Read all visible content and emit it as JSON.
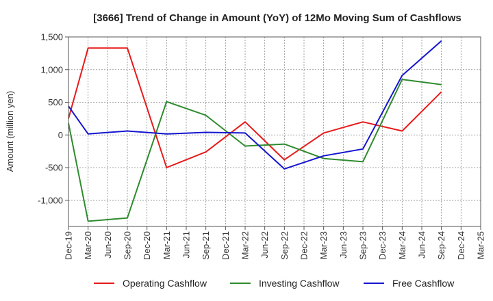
{
  "chart_data": {
    "type": "line",
    "title": "[3666]  Trend of Change in Amount (YoY) of 12Mo Moving Sum of Cashflows",
    "xlabel": "",
    "ylabel": "Amount (million yen)",
    "ylim": [
      -1400,
      1500
    ],
    "yticks": [
      1500,
      1000,
      500,
      0,
      -500,
      -1000
    ],
    "ytick_labels": [
      "1,500",
      "1,000",
      "500",
      "0",
      "-500",
      "-1,000"
    ],
    "categories": [
      "Dec-19",
      "Mar-20",
      "Jun-20",
      "Sep-20",
      "Dec-20",
      "Mar-21",
      "Jun-21",
      "Sep-21",
      "Dec-21",
      "Mar-22",
      "Jun-22",
      "Sep-22",
      "Dec-22",
      "Mar-23",
      "Jun-23",
      "Sep-23",
      "Dec-23",
      "Mar-24",
      "Jun-24",
      "Sep-24",
      "Dec-24",
      "Mar-25"
    ],
    "grid": true,
    "legend_position": "bottom",
    "series": [
      {
        "name": "Operating Cashflow",
        "color": "#e8191a",
        "points": [
          {
            "x": "Dec-19",
            "y": 250
          },
          {
            "x": "Mar-20",
            "y": 1330
          },
          {
            "x": "Sep-20",
            "y": 1330
          },
          {
            "x": "Mar-21",
            "y": -500
          },
          {
            "x": "Sep-21",
            "y": -260
          },
          {
            "x": "Mar-22",
            "y": 200
          },
          {
            "x": "Sep-22",
            "y": -380
          },
          {
            "x": "Mar-23",
            "y": 30
          },
          {
            "x": "Sep-23",
            "y": 200
          },
          {
            "x": "Mar-24",
            "y": 60
          },
          {
            "x": "Sep-24",
            "y": 660
          }
        ]
      },
      {
        "name": "Investing Cashflow",
        "color": "#2e8b2e",
        "points": [
          {
            "x": "Dec-19",
            "y": 180
          },
          {
            "x": "Mar-20",
            "y": -1320
          },
          {
            "x": "Sep-20",
            "y": -1270
          },
          {
            "x": "Mar-21",
            "y": 510
          },
          {
            "x": "Sep-21",
            "y": 300
          },
          {
            "x": "Mar-22",
            "y": -170
          },
          {
            "x": "Sep-22",
            "y": -140
          },
          {
            "x": "Mar-23",
            "y": -360
          },
          {
            "x": "Sep-23",
            "y": -410
          },
          {
            "x": "Mar-24",
            "y": 850
          },
          {
            "x": "Sep-24",
            "y": 770
          }
        ]
      },
      {
        "name": "Free Cashflow",
        "color": "#1515d0",
        "points": [
          {
            "x": "Dec-19",
            "y": 440
          },
          {
            "x": "Mar-20",
            "y": 15
          },
          {
            "x": "Sep-20",
            "y": 60
          },
          {
            "x": "Mar-21",
            "y": 15
          },
          {
            "x": "Sep-21",
            "y": 40
          },
          {
            "x": "Mar-22",
            "y": 30
          },
          {
            "x": "Sep-22",
            "y": -520
          },
          {
            "x": "Mar-23",
            "y": -320
          },
          {
            "x": "Sep-23",
            "y": -215
          },
          {
            "x": "Mar-24",
            "y": 910
          },
          {
            "x": "Sep-24",
            "y": 1440
          }
        ]
      }
    ]
  }
}
